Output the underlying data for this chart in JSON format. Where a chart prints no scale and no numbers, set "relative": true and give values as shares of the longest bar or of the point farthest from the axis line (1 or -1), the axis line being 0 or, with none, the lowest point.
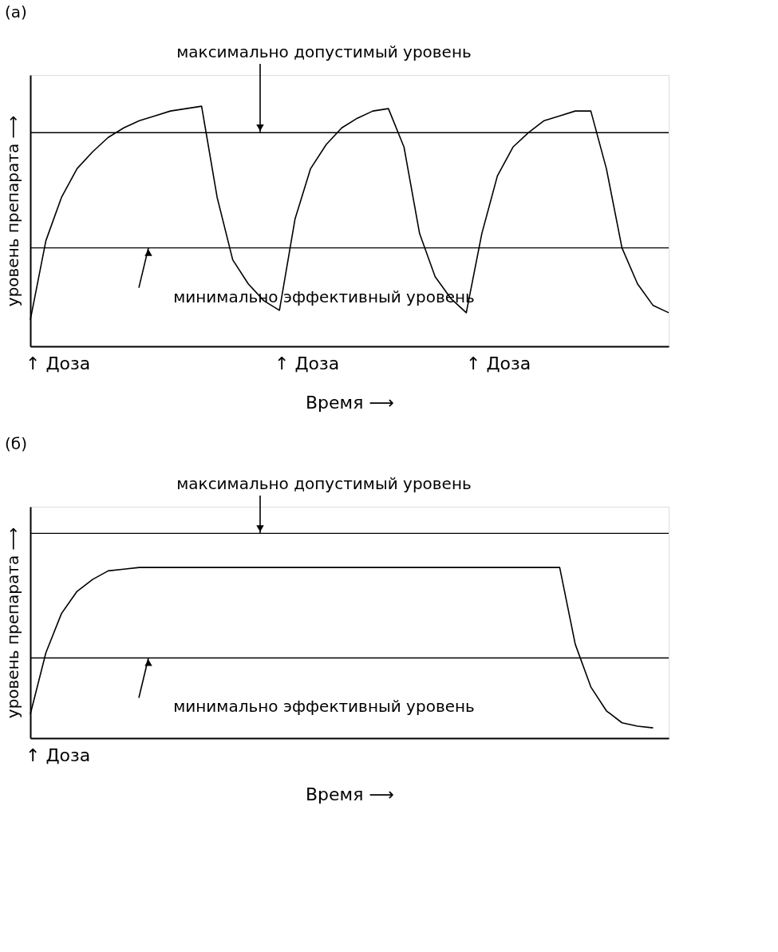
{
  "chart_data": [
    {
      "type": "line",
      "title": "(а)",
      "xlabel": "Время ⟶",
      "ylabel": "уровень препарата ⟶",
      "relative": true,
      "grid": false,
      "marker": "none",
      "line_style": "solid",
      "categories": [
        null,
        null,
        null,
        null,
        null,
        null,
        null,
        null,
        null,
        null,
        null,
        null,
        null,
        null,
        null,
        null,
        null,
        null,
        null,
        null,
        null,
        null,
        null,
        null,
        null,
        null,
        null,
        null,
        null,
        null,
        null,
        null,
        null,
        null,
        null,
        null,
        null,
        null,
        null,
        null,
        null,
        null
      ],
      "series": [
        {
          "color": "#000000",
          "values": [
            0.11,
            0.44,
            0.62,
            0.74,
            0.81,
            0.87,
            0.91,
            0.94,
            0.96,
            0.98,
            0.99,
            1.0,
            0.62,
            0.36,
            0.26,
            0.19,
            0.15,
            0.53,
            0.74,
            0.84,
            0.91,
            0.95,
            0.98,
            0.99,
            0.83,
            0.47,
            0.29,
            0.2,
            0.14,
            0.47,
            0.71,
            0.83,
            0.89,
            0.94,
            0.96,
            0.98,
            0.98,
            0.74,
            0.41,
            0.26,
            0.17,
            0.14
          ]
        }
      ],
      "ref_lines": [
        {
          "axis": "y",
          "value": 0.89,
          "label": "максимально допустимый уровень",
          "color": "#000000"
        },
        {
          "axis": "y",
          "value": 0.41,
          "label": "минимально эффективный уровень",
          "color": "#000000"
        }
      ],
      "annotations": [
        "↑ Доза",
        "↑ Доза",
        "↑ Доза"
      ]
    },
    {
      "type": "line",
      "title": "(б)",
      "xlabel": "Время ⟶",
      "ylabel": "уровень препарата ⟶",
      "relative": true,
      "grid": false,
      "marker": "none",
      "line_style": "solid",
      "categories": [
        null,
        null,
        null,
        null,
        null,
        null,
        null,
        null,
        null,
        null,
        null,
        null,
        null,
        null,
        null,
        null,
        null,
        null,
        null,
        null,
        null,
        null,
        null,
        null,
        null,
        null,
        null,
        null,
        null,
        null,
        null,
        null,
        null,
        null,
        null,
        null,
        null,
        null,
        null,
        null,
        null,
        null
      ],
      "series": [
        {
          "color": "#000000",
          "values": [
            0.14,
            0.5,
            0.73,
            0.86,
            0.93,
            0.98,
            0.99,
            1.0,
            1.0,
            1.0,
            1.0,
            1.0,
            1.0,
            1.0,
            1.0,
            1.0,
            1.0,
            1.0,
            1.0,
            1.0,
            1.0,
            1.0,
            1.0,
            1.0,
            1.0,
            1.0,
            1.0,
            1.0,
            1.0,
            1.0,
            1.0,
            1.0,
            1.0,
            1.0,
            1.0,
            0.55,
            0.3,
            0.16,
            0.09,
            0.07,
            0.06,
            null
          ]
        }
      ],
      "ref_lines": [
        {
          "axis": "y",
          "value": 1.2,
          "label": "максимально допустимый уровень",
          "color": "#000000"
        },
        {
          "axis": "y",
          "value": 0.47,
          "label": "минимально эффективный уровень",
          "color": "#000000"
        }
      ],
      "annotations": [
        "↑ Доза"
      ]
    }
  ]
}
